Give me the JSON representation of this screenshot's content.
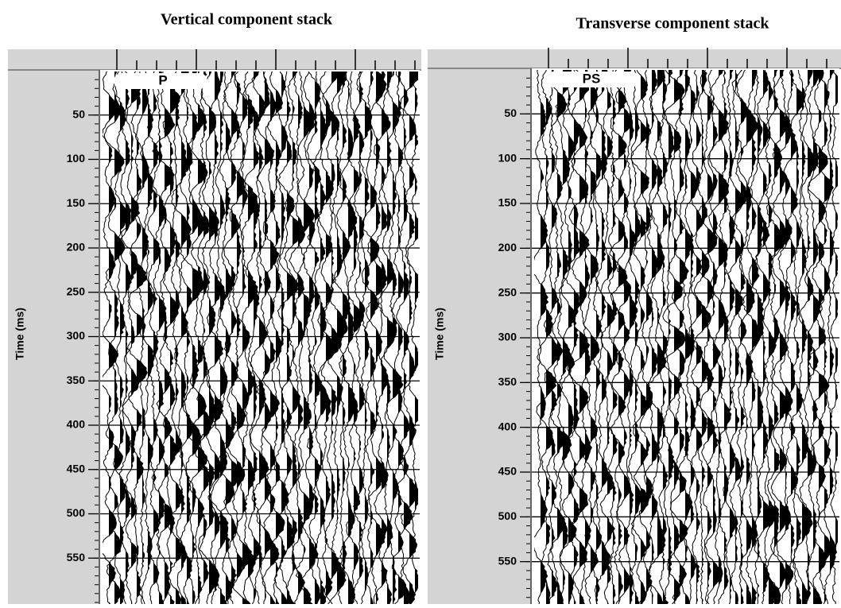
{
  "panels": [
    {
      "title": "Vertical component stack",
      "y_label": "Time (ms)",
      "label": "P",
      "ylim": [
        0,
        600
      ],
      "yticks": [
        50,
        100,
        150,
        200,
        250,
        300,
        350,
        400,
        450,
        500,
        550
      ]
    },
    {
      "title": "Transverse component stack",
      "y_label": "Time (ms)",
      "label": "PS",
      "ylim": [
        0,
        600
      ],
      "yticks": [
        50,
        100,
        150,
        200,
        250,
        300,
        350,
        400,
        450,
        500,
        550
      ]
    }
  ]
}
